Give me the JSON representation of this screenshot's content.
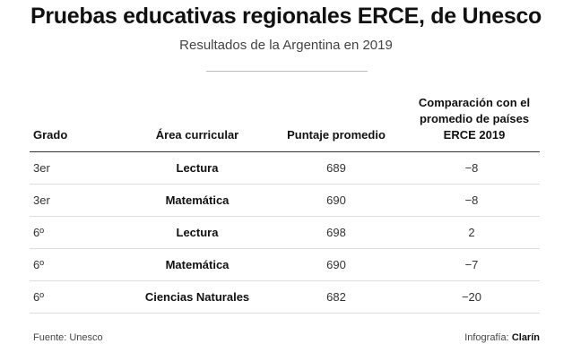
{
  "header": {
    "title": "Pruebas educativas regionales ERCE, de Unesco",
    "subtitle": "Resultados de la Argentina en 2019"
  },
  "table": {
    "columns": [
      "Grado",
      "Área curricular",
      "Puntaje promedio",
      "Comparación con el promedio de países ERCE 2019"
    ],
    "rows": [
      [
        "3er",
        "Lectura",
        "689",
        "−8"
      ],
      [
        "3er",
        "Matemática",
        "690",
        "−8"
      ],
      [
        "6º",
        "Lectura",
        "698",
        "2"
      ],
      [
        "6º",
        "Matemática",
        "690",
        "−7"
      ],
      [
        "6º",
        "Ciencias Naturales",
        "682",
        "−20"
      ]
    ]
  },
  "footer": {
    "source": "Fuente: Unesco",
    "credit_label": "Infografía:",
    "credit": "Clarín"
  }
}
